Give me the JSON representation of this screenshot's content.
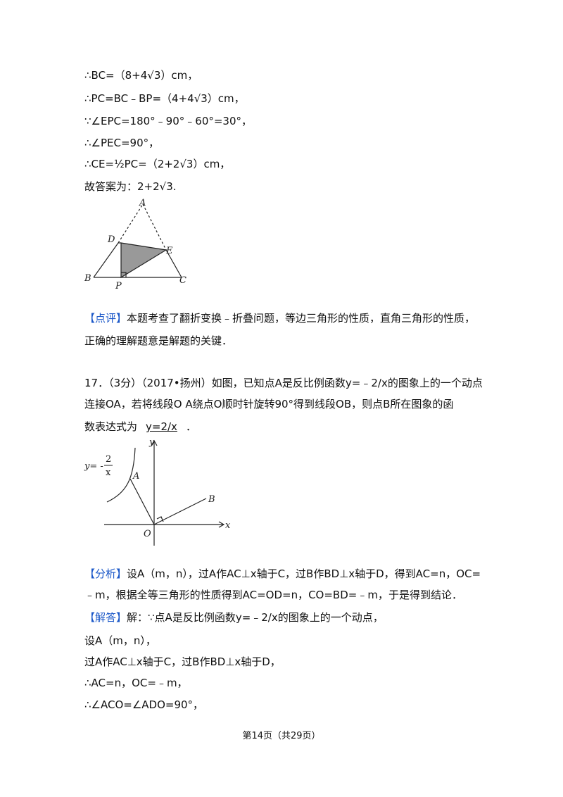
{
  "solution_lines": [
    "∴BC=（8+4√3）cm，",
    "∴PC=BC﹣BP=（4+4√3）cm，",
    "∵∠EPC=180°﹣90°﹣60°=30°，",
    "∴∠PEC=90°，",
    "∴CE=½PC=（2+2√3）cm，",
    "故答案为：2+2√3."
  ],
  "figure1": {
    "labels": [
      "A",
      "D",
      "E",
      "B",
      "P",
      "C"
    ]
  },
  "comment": {
    "tag": "【点评】",
    "lines": [
      "本题考查了翻折变换﹣折叠问题，等边三角形的性质，直角三角形的性质，",
      "正确的理解题意是解题的关键．"
    ]
  },
  "question": {
    "lines": [
      "17．（3分）（2017•扬州）如图，已知点A是反比例函数y=﹣2/x的图象上的一个动点",
      "连接OA，若将线段O A绕点O顺时针旋转90°得到线段OB，则点B所在图象的函"
    ],
    "last_prefix": "数表达式为",
    "answer": "y=2/x",
    "last_suffix": "．"
  },
  "figure2": {
    "labels": [
      "y",
      "x",
      "O",
      "A",
      "B"
    ],
    "curve_label": "y= -",
    "curve_num": "2",
    "curve_den": "x"
  },
  "analysis": {
    "tag": "【分析】",
    "lines": [
      "设A（m，n），过A作AC⊥x轴于C，过B作BD⊥x轴于D，得到AC=n，OC=",
      "﹣m，根据全等三角形的性质得到AC=OD=n，CO=BD=﹣m，于是得到结论．"
    ]
  },
  "answer_section": {
    "tag": "【解答】",
    "lines": [
      "解：∵点A是反比例函数y=﹣2/x的图象上的一个动点，",
      "设A（m，n），",
      "过A作AC⊥x轴于C，过B作BD⊥x轴于D，",
      "∴AC=n，OC=﹣m，",
      "∴∠ACO=∠ADO=90°，"
    ]
  },
  "footer": "第14页（共29页）"
}
